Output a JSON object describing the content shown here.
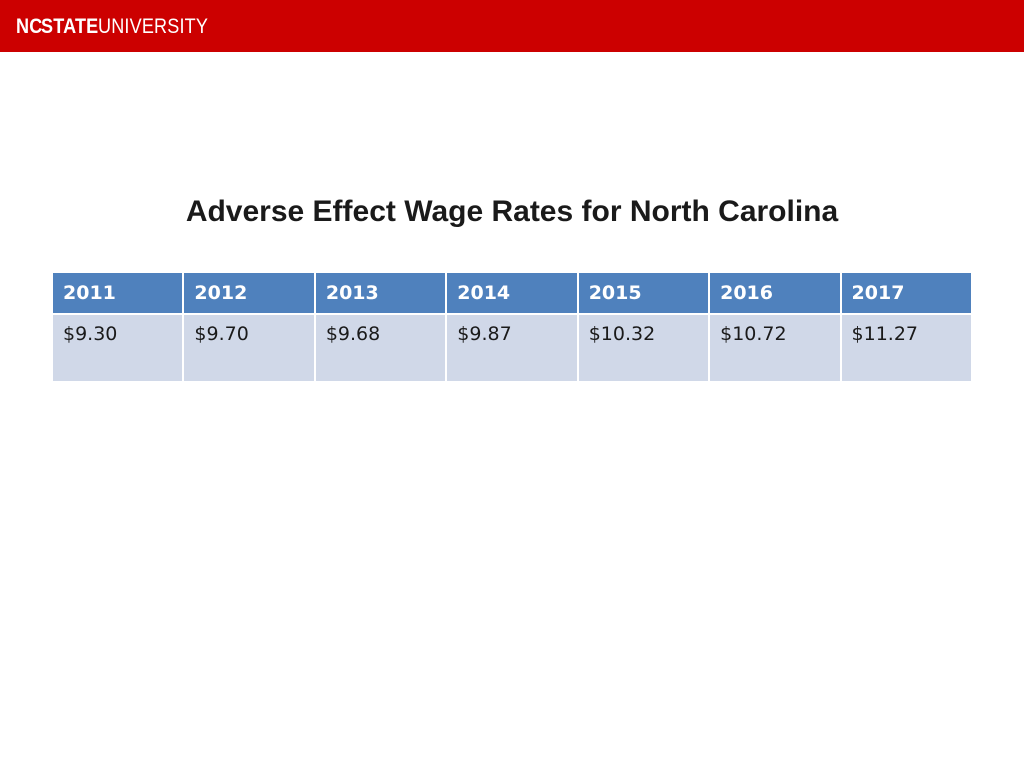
{
  "header": {
    "logo_part1": "NC",
    "logo_part2": "STATE",
    "logo_part3": "UNIVERSITY"
  },
  "title": "Adverse Effect Wage Rates for North Carolina",
  "table": {
    "columns": [
      "2011",
      "2012",
      "2013",
      "2014",
      "2015",
      "2016",
      "2017"
    ],
    "rows": [
      [
        "$9.30",
        "$9.70",
        "$9.68",
        "$9.87",
        "$10.32",
        "$10.72",
        "$11.27"
      ]
    ]
  },
  "colors": {
    "brand": "#cc0000",
    "header_bg": "#4f81bd",
    "row_bg": "#d0d8e8"
  }
}
